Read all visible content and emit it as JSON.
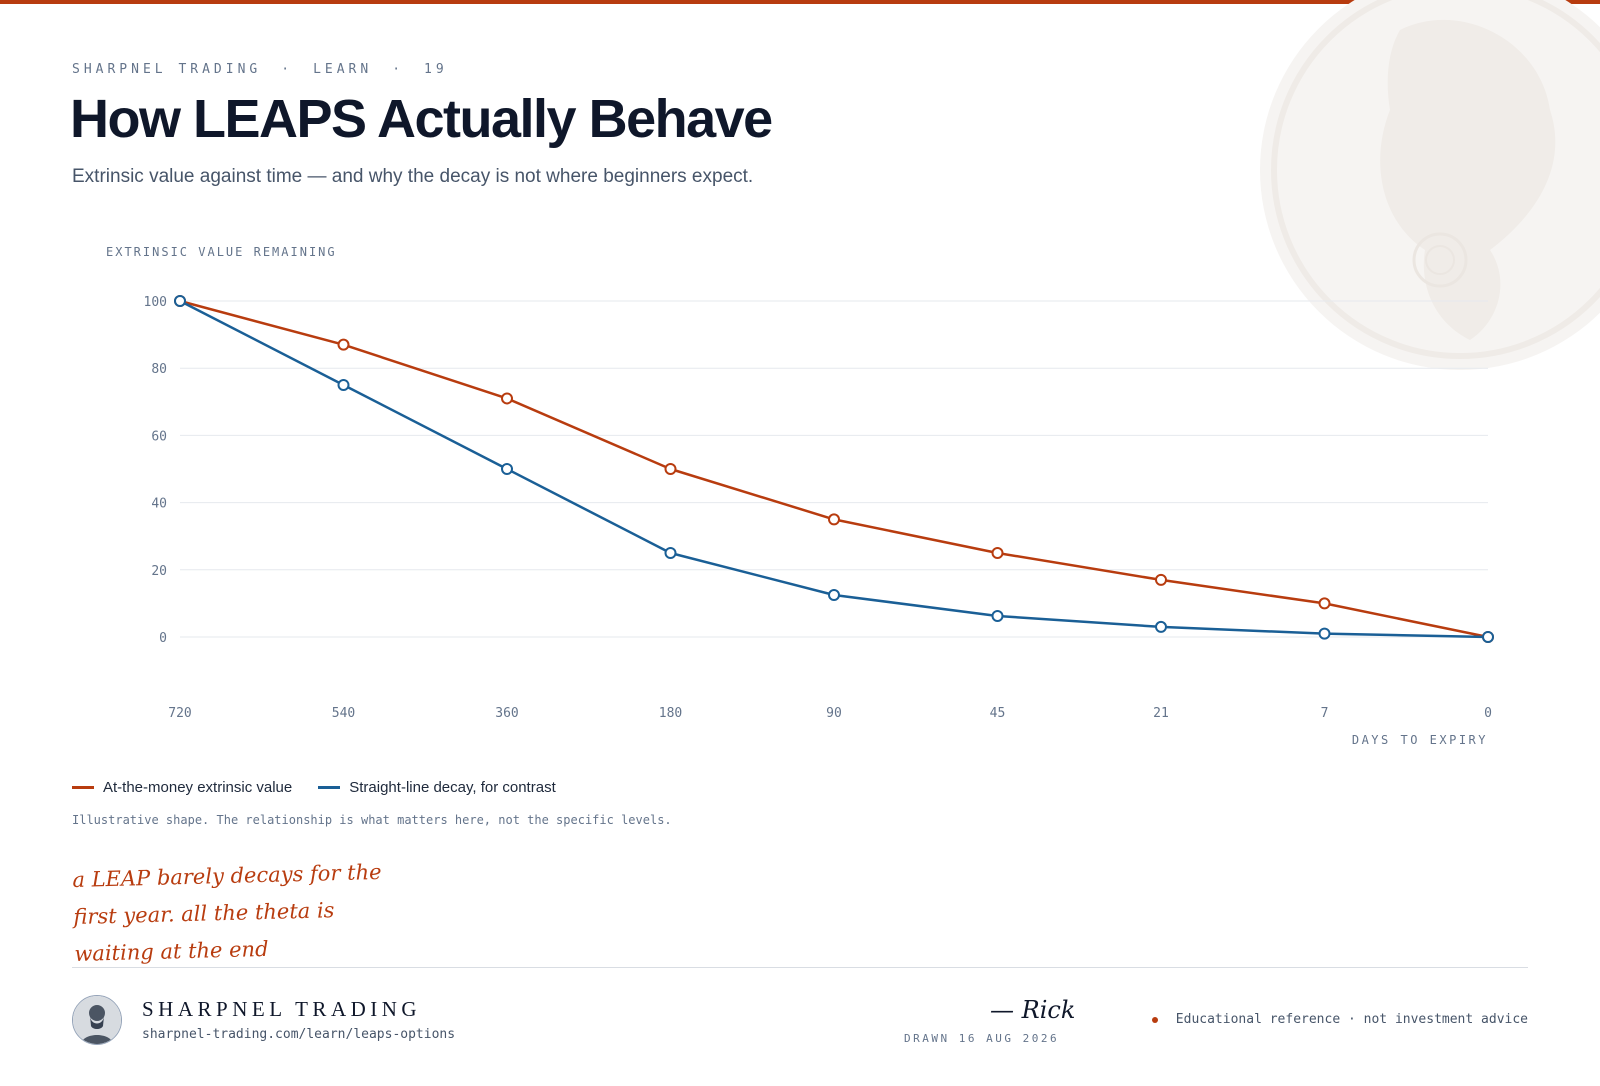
{
  "header": {
    "brand": "SHARPNEL TRADING",
    "section": "LEARN",
    "issue": "19",
    "title": "How LEAPS Actually Behave",
    "subtitle": "Extrinsic value against time — and why the decay is not where beginners expect."
  },
  "colors": {
    "accent": "#b83c0f",
    "contrast": "#1a5f96",
    "grid": "#e6e9ee",
    "muted": "#64748b"
  },
  "chart_data": {
    "type": "line",
    "ylabel": "EXTRINSIC VALUE REMAINING",
    "xlabel": "DAYS TO EXPIRY",
    "categories": [
      "720",
      "540",
      "360",
      "180",
      "90",
      "45",
      "21",
      "7",
      "0"
    ],
    "yticks": [
      0,
      20,
      40,
      60,
      80,
      100
    ],
    "ylim": [
      -20,
      100
    ],
    "grid": true,
    "legend_position": "bottom-left",
    "series": [
      {
        "name": "At-the-money extrinsic value",
        "color": "#b83c0f",
        "values": [
          100,
          87,
          71,
          50,
          35,
          25,
          17,
          10,
          0
        ]
      },
      {
        "name": "Straight-line decay, for contrast",
        "color": "#1a5f96",
        "values": [
          100,
          75,
          50,
          25,
          12.5,
          6.25,
          3,
          1,
          0
        ]
      }
    ]
  },
  "footnote": "Illustrative shape. The relationship is what matters here, not the specific levels.",
  "annotation": {
    "lines": [
      "a LEAP barely decays for the",
      "first year. all the theta is",
      "waiting at the end"
    ]
  },
  "footer": {
    "brand": "SHARPNEL TRADING",
    "url": "sharpnel-trading.com/learn/leaps-options",
    "signature": "— Rick",
    "drawn": "DRAWN 16 AUG 2026",
    "disclaimer": "Educational reference · not investment advice"
  }
}
